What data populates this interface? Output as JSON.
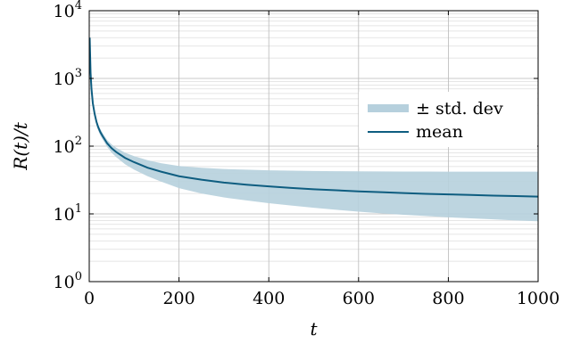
{
  "chart_data": {
    "type": "line",
    "title": "",
    "xlabel": "t",
    "ylabel": "R(t)/t",
    "x_scale": "linear",
    "y_scale": "log",
    "xlim": [
      0,
      1000
    ],
    "ylim": [
      1,
      10000
    ],
    "x_ticks": [
      0,
      200,
      400,
      600,
      800,
      1000
    ],
    "x_tick_labels": [
      "0",
      "200",
      "400",
      "600",
      "800",
      "1000"
    ],
    "y_ticks": [
      1,
      10,
      100,
      1000,
      10000
    ],
    "y_tick_labels": [
      {
        "base": "10",
        "exp": "0"
      },
      {
        "base": "10",
        "exp": "1"
      },
      {
        "base": "10",
        "exp": "2"
      },
      {
        "base": "10",
        "exp": "3"
      },
      {
        "base": "10",
        "exp": "4"
      }
    ],
    "grid": true,
    "legend_position": "right",
    "series": [
      {
        "name": "mean",
        "kind": "line",
        "color": "#0e5d80",
        "x": [
          1,
          3,
          5,
          8,
          12,
          16,
          20,
          25,
          30,
          40,
          50,
          60,
          80,
          100,
          130,
          160,
          200,
          250,
          300,
          350,
          400,
          450,
          500,
          550,
          600,
          650,
          700,
          750,
          800,
          850,
          900,
          950,
          1000
        ],
        "y": [
          4000,
          1200,
          700,
          430,
          300,
          230,
          190,
          160,
          140,
          110,
          93,
          82,
          67,
          58,
          48,
          42,
          36,
          32,
          29,
          27,
          25.5,
          24.2,
          23.1,
          22.3,
          21.5,
          20.9,
          20.3,
          19.8,
          19.4,
          19,
          18.6,
          18.3,
          18
        ]
      },
      {
        "name": "± std. dev",
        "kind": "band",
        "color": "#b6d0dd",
        "x": [
          1,
          3,
          5,
          8,
          12,
          16,
          20,
          25,
          30,
          40,
          50,
          60,
          80,
          100,
          130,
          160,
          200,
          250,
          300,
          350,
          400,
          450,
          500,
          550,
          600,
          650,
          700,
          750,
          800,
          850,
          900,
          950,
          1000
        ],
        "upper": [
          4200,
          1300,
          760,
          470,
          330,
          255,
          210,
          178,
          155,
          123,
          106,
          95,
          80,
          71,
          62,
          56,
          51,
          48,
          46,
          45,
          44,
          43.5,
          43,
          42.7,
          42.5,
          42.3,
          42.2,
          42.1,
          42,
          42,
          42,
          42,
          42
        ],
        "lower": [
          3800,
          1100,
          640,
          390,
          270,
          205,
          170,
          142,
          125,
          97,
          80,
          69,
          54,
          45,
          36,
          30,
          24,
          20,
          17.5,
          15.8,
          14.4,
          13.3,
          12.3,
          11.5,
          10.8,
          10.2,
          9.7,
          9.3,
          8.9,
          8.6,
          8.3,
          8,
          7.8
        ]
      }
    ]
  }
}
